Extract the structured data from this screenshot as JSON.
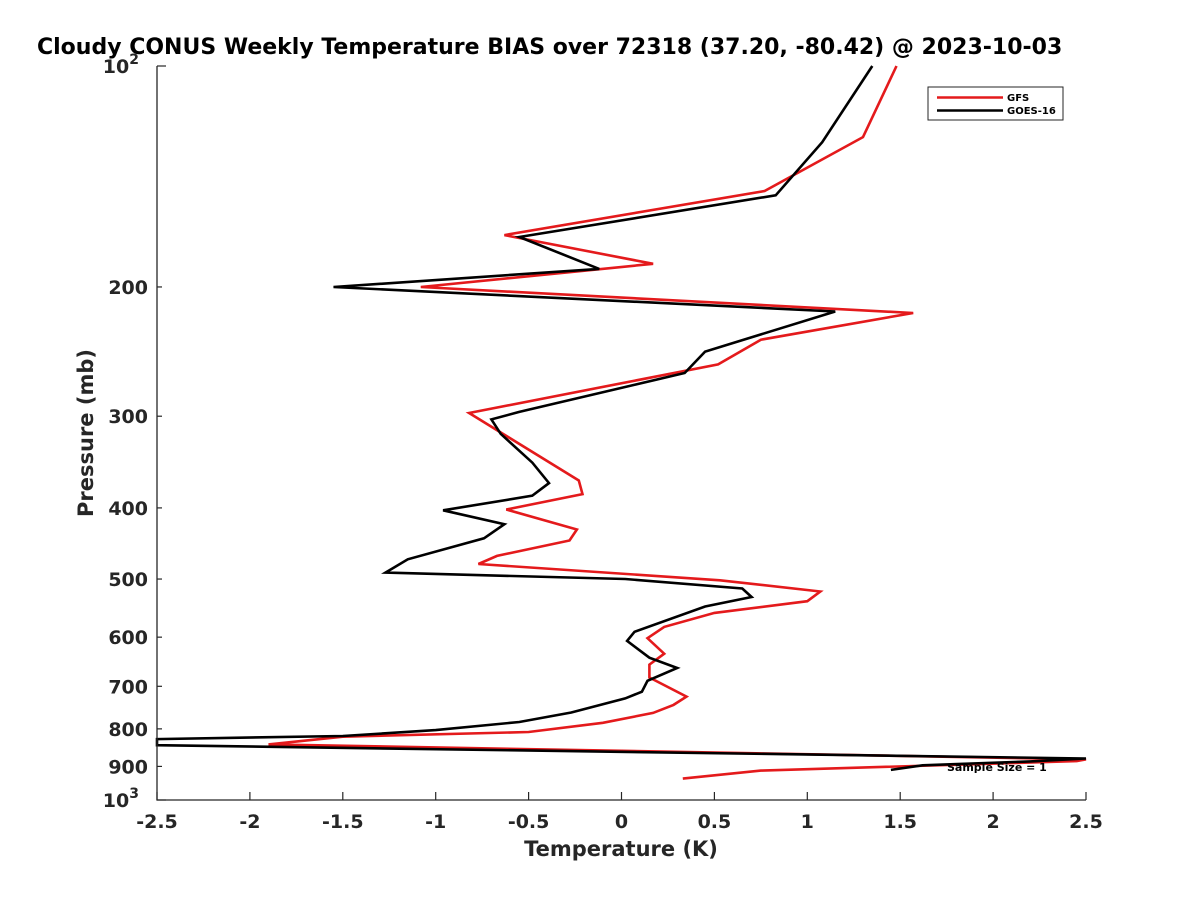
{
  "chart_data": {
    "type": "line",
    "title": "Cloudy CONUS Weekly Temperature BIAS over 72318 (37.20, -80.42) @ 2023-10-03",
    "xlabel": "Temperature (K)",
    "ylabel": "Pressure (mb)",
    "xlim": [
      -2.5,
      2.5
    ],
    "ylim": [
      100,
      1000
    ],
    "y_scale": "log",
    "y_reversed": true,
    "grid": false,
    "legend_position": "top-right",
    "x_ticks": [
      "-2.5",
      "-2",
      "-1.5",
      "-1",
      "-0.5",
      "0",
      "0.5",
      "1",
      "1.5",
      "2",
      "2.5"
    ],
    "x_tick_values": [
      -2.5,
      -2,
      -1.5,
      -1,
      -0.5,
      0,
      0.5,
      1,
      1.5,
      2,
      2.5
    ],
    "y_ticks": [
      {
        "value": 100,
        "base": "10",
        "exp": "2"
      },
      {
        "value": 200,
        "base": "200",
        "exp": ""
      },
      {
        "value": 300,
        "base": "300",
        "exp": ""
      },
      {
        "value": 400,
        "base": "400",
        "exp": ""
      },
      {
        "value": 500,
        "base": "500",
        "exp": ""
      },
      {
        "value": 600,
        "base": "600",
        "exp": ""
      },
      {
        "value": 700,
        "base": "700",
        "exp": ""
      },
      {
        "value": 800,
        "base": "800",
        "exp": ""
      },
      {
        "value": 900,
        "base": "900",
        "exp": ""
      },
      {
        "value": 1000,
        "base": "10",
        "exp": "3"
      }
    ],
    "series": [
      {
        "name": "GFS",
        "color": "#e41a1c",
        "points": [
          [
            1.48,
            100
          ],
          [
            1.3,
            125
          ],
          [
            0.77,
            148
          ],
          [
            -0.63,
            170
          ],
          [
            0.17,
            186
          ],
          [
            -1.08,
            200
          ],
          [
            1.57,
            217
          ],
          [
            0.75,
            236
          ],
          [
            0.52,
            255
          ],
          [
            -0.82,
            297
          ],
          [
            -0.23,
            367
          ],
          [
            -0.21,
            383
          ],
          [
            -0.62,
            402
          ],
          [
            -0.24,
            428
          ],
          [
            -0.28,
            443
          ],
          [
            -0.67,
            465
          ],
          [
            -0.77,
            477
          ],
          [
            0.53,
            502
          ],
          [
            1.07,
            520
          ],
          [
            1.0,
            536
          ],
          [
            0.5,
            556
          ],
          [
            0.23,
            581
          ],
          [
            0.14,
            602
          ],
          [
            0.23,
            632
          ],
          [
            0.15,
            654
          ],
          [
            0.15,
            681
          ],
          [
            0.35,
            723
          ],
          [
            0.28,
            742
          ],
          [
            0.17,
            761
          ],
          [
            -0.1,
            785
          ],
          [
            -0.5,
            808
          ],
          [
            -1.5,
            820
          ],
          [
            -1.9,
            840
          ],
          [
            2.5,
            880
          ],
          [
            2.45,
            885
          ],
          [
            0.75,
            912
          ],
          [
            0.33,
            935
          ]
        ]
      },
      {
        "name": "GOES-16",
        "color": "#000000",
        "points": [
          [
            1.35,
            100
          ],
          [
            1.08,
            127
          ],
          [
            0.83,
            150
          ],
          [
            -0.55,
            171
          ],
          [
            -0.12,
            189
          ],
          [
            -1.55,
            200
          ],
          [
            1.15,
            216
          ],
          [
            0.45,
            245
          ],
          [
            0.34,
            262
          ],
          [
            -0.55,
            296
          ],
          [
            -0.7,
            303
          ],
          [
            -0.65,
            317
          ],
          [
            -0.48,
            347
          ],
          [
            -0.39,
            370
          ],
          [
            -0.48,
            385
          ],
          [
            -0.96,
            403
          ],
          [
            -0.63,
            421
          ],
          [
            -0.74,
            440
          ],
          [
            -1.15,
            470
          ],
          [
            -1.27,
            490
          ],
          [
            0.02,
            500
          ],
          [
            0.65,
            515
          ],
          [
            0.7,
            529
          ],
          [
            0.45,
            545
          ],
          [
            0.07,
            590
          ],
          [
            0.03,
            607
          ],
          [
            0.15,
            640
          ],
          [
            0.3,
            661
          ],
          [
            0.14,
            688
          ],
          [
            0.11,
            712
          ],
          [
            0.02,
            727
          ],
          [
            -0.27,
            760
          ],
          [
            -0.55,
            783
          ],
          [
            -1.0,
            803
          ],
          [
            -1.5,
            818
          ],
          [
            -2.5,
            826
          ],
          [
            -2.5,
            842
          ],
          [
            2.5,
            878
          ],
          [
            2.2,
            886
          ],
          [
            1.62,
            897
          ],
          [
            1.45,
            910
          ]
        ]
      }
    ],
    "annotation": "Sample Size = 1"
  }
}
